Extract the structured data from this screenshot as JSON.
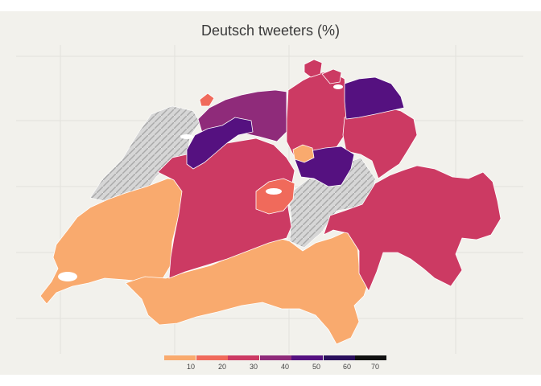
{
  "title": "Deutsch tweeters (%)",
  "scale": {
    "colors": [
      "#f9aa6e",
      "#f06a5b",
      "#cc3a63",
      "#8f2b7a",
      "#551180",
      "#2a0f5c",
      "#111111"
    ],
    "ticks": [
      "10",
      "20",
      "30",
      "40",
      "50",
      "60",
      "70"
    ],
    "category_colors": {
      "0-10": "#f9aa6e",
      "10-20": "#f06a5b",
      "20-30": "#cc3a63",
      "30-40": "#8f2b7a",
      "40-50": "#551180"
    },
    "lake_color": "#ffffff",
    "relief_color": "#d4d4d4",
    "background": "#f2f1ec"
  }
}
